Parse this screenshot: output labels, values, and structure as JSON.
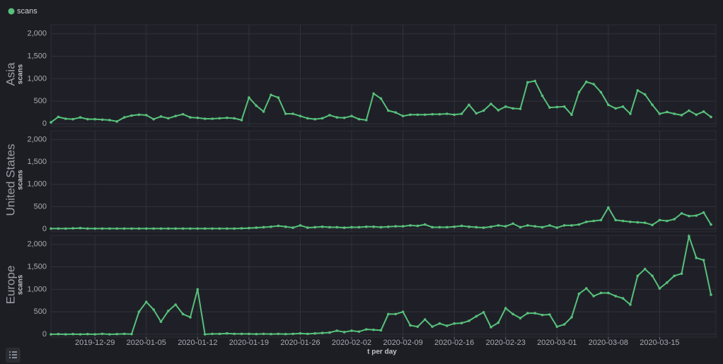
{
  "chart_data": {
    "type": "line",
    "legend": {
      "label": "scans",
      "color": "#57c17b"
    },
    "x_label": "t per day",
    "y_label": "scans",
    "x": [
      "2019-12-23",
      "2019-12-24",
      "2019-12-25",
      "2019-12-26",
      "2019-12-27",
      "2019-12-28",
      "2019-12-29",
      "2019-12-30",
      "2019-12-31",
      "2020-01-01",
      "2020-01-02",
      "2020-01-03",
      "2020-01-04",
      "2020-01-05",
      "2020-01-06",
      "2020-01-07",
      "2020-01-08",
      "2020-01-09",
      "2020-01-10",
      "2020-01-11",
      "2020-01-12",
      "2020-01-13",
      "2020-01-14",
      "2020-01-15",
      "2020-01-16",
      "2020-01-17",
      "2020-01-18",
      "2020-01-19",
      "2020-01-20",
      "2020-01-21",
      "2020-01-22",
      "2020-01-23",
      "2020-01-24",
      "2020-01-25",
      "2020-01-26",
      "2020-01-27",
      "2020-01-28",
      "2020-01-29",
      "2020-01-30",
      "2020-01-31",
      "2020-02-01",
      "2020-02-02",
      "2020-02-03",
      "2020-02-04",
      "2020-02-05",
      "2020-02-06",
      "2020-02-07",
      "2020-02-08",
      "2020-02-09",
      "2020-02-10",
      "2020-02-11",
      "2020-02-12",
      "2020-02-13",
      "2020-02-14",
      "2020-02-15",
      "2020-02-16",
      "2020-02-17",
      "2020-02-18",
      "2020-02-19",
      "2020-02-20",
      "2020-02-21",
      "2020-02-22",
      "2020-02-23",
      "2020-02-24",
      "2020-02-25",
      "2020-02-26",
      "2020-02-27",
      "2020-02-28",
      "2020-02-29",
      "2020-03-01",
      "2020-03-02",
      "2020-03-03",
      "2020-03-04",
      "2020-03-05",
      "2020-03-06",
      "2020-03-07",
      "2020-03-08",
      "2020-03-09",
      "2020-03-10",
      "2020-03-11",
      "2020-03-12",
      "2020-03-13",
      "2020-03-14",
      "2020-03-15",
      "2020-03-16",
      "2020-03-17",
      "2020-03-18",
      "2020-03-19",
      "2020-03-20",
      "2020-03-21",
      "2020-03-22"
    ],
    "xticks": [
      "2019-12-29",
      "2020-01-05",
      "2020-01-12",
      "2020-01-19",
      "2020-01-26",
      "2020-02-02",
      "2020-02-09",
      "2020-02-16",
      "2020-02-23",
      "2020-03-01",
      "2020-03-08",
      "2020-03-15"
    ],
    "ylim": [
      0,
      2200
    ],
    "yticks": [
      0,
      500,
      {
        "value": 1000,
        "label": "1,000"
      },
      {
        "value": 1500,
        "label": "1,500"
      },
      {
        "value": 2000,
        "label": "2,000"
      }
    ],
    "grid": true,
    "series": [
      {
        "name": "Asia",
        "color": "#57c17b",
        "values": [
          30,
          150,
          110,
          100,
          140,
          100,
          100,
          90,
          80,
          50,
          140,
          180,
          200,
          190,
          100,
          160,
          120,
          170,
          210,
          140,
          130,
          110,
          110,
          120,
          130,
          120,
          80,
          580,
          400,
          270,
          640,
          580,
          220,
          220,
          170,
          120,
          100,
          120,
          190,
          140,
          130,
          170,
          100,
          80,
          670,
          560,
          290,
          250,
          170,
          200,
          200,
          200,
          210,
          210,
          220,
          200,
          220,
          420,
          230,
          290,
          440,
          300,
          380,
          340,
          330,
          920,
          950,
          620,
          360,
          370,
          380,
          200,
          700,
          930,
          880,
          700,
          420,
          340,
          380,
          220,
          740,
          650,
          420,
          220,
          260,
          220,
          190,
          290,
          200,
          270,
          150
        ]
      },
      {
        "name": "United States",
        "color": "#57c17b",
        "values": [
          10,
          10,
          10,
          15,
          20,
          10,
          10,
          10,
          10,
          10,
          10,
          10,
          10,
          10,
          10,
          10,
          10,
          10,
          10,
          10,
          10,
          10,
          10,
          10,
          10,
          10,
          15,
          20,
          30,
          40,
          50,
          70,
          50,
          30,
          80,
          30,
          40,
          50,
          40,
          40,
          30,
          40,
          40,
          50,
          50,
          40,
          50,
          60,
          60,
          80,
          70,
          100,
          40,
          40,
          40,
          50,
          70,
          50,
          40,
          30,
          50,
          80,
          60,
          120,
          40,
          80,
          60,
          40,
          80,
          30,
          80,
          80,
          100,
          160,
          180,
          200,
          480,
          200,
          180,
          160,
          150,
          140,
          90,
          200,
          180,
          220,
          350,
          290,
          300,
          370,
          100
        ]
      },
      {
        "name": "Europe",
        "color": "#57c17b",
        "values": [
          0,
          5,
          0,
          5,
          0,
          5,
          0,
          10,
          0,
          5,
          10,
          5,
          500,
          720,
          550,
          280,
          520,
          660,
          450,
          380,
          1000,
          0,
          10,
          10,
          20,
          10,
          10,
          10,
          5,
          10,
          5,
          10,
          5,
          10,
          20,
          10,
          20,
          30,
          40,
          80,
          50,
          80,
          60,
          110,
          100,
          90,
          450,
          450,
          500,
          200,
          170,
          330,
          170,
          240,
          190,
          240,
          250,
          300,
          400,
          490,
          160,
          260,
          580,
          450,
          360,
          470,
          470,
          430,
          440,
          170,
          220,
          380,
          900,
          1020,
          850,
          920,
          920,
          850,
          800,
          660,
          1300,
          1450,
          1300,
          1020,
          1150,
          1300,
          1350,
          2180,
          1700,
          1650,
          880
        ]
      }
    ]
  }
}
